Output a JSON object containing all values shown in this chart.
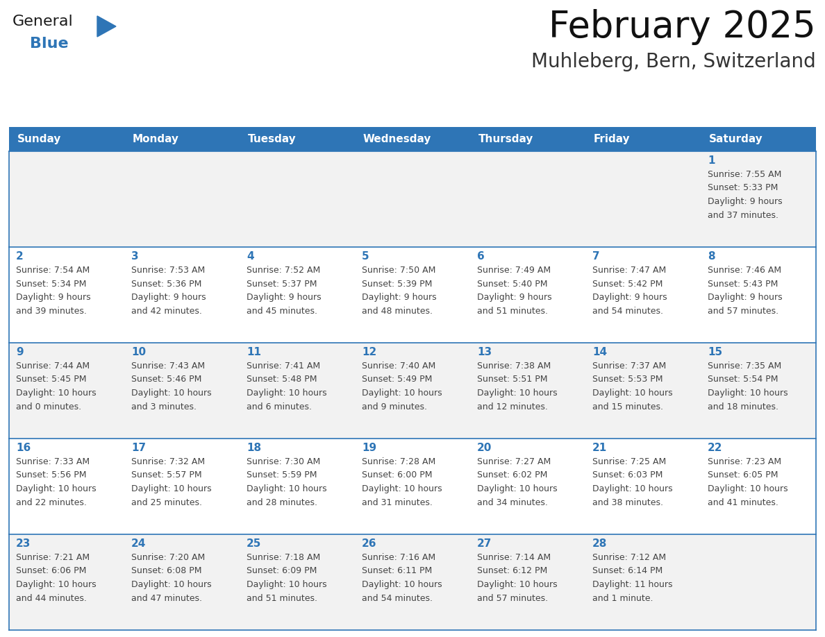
{
  "title": "February 2025",
  "subtitle": "Muhleberg, Bern, Switzerland",
  "header_bg": "#2E75B6",
  "header_text_color": "#FFFFFF",
  "cell_bg_white": "#FFFFFF",
  "cell_bg_gray": "#F2F2F2",
  "cell_border_color": "#2E75B6",
  "day_number_color": "#2E75B6",
  "cell_text_color": "#444444",
  "days_of_week": [
    "Sunday",
    "Monday",
    "Tuesday",
    "Wednesday",
    "Thursday",
    "Friday",
    "Saturday"
  ],
  "logo_general_color": "#1a1a1a",
  "logo_blue_color": "#2E75B6",
  "calendar_data": [
    [
      null,
      null,
      null,
      null,
      null,
      null,
      {
        "day": 1,
        "sunrise": "7:55 AM",
        "sunset": "5:33 PM",
        "daylight": "9 hours and 37 minutes."
      }
    ],
    [
      {
        "day": 2,
        "sunrise": "7:54 AM",
        "sunset": "5:34 PM",
        "daylight": "9 hours and 39 minutes."
      },
      {
        "day": 3,
        "sunrise": "7:53 AM",
        "sunset": "5:36 PM",
        "daylight": "9 hours and 42 minutes."
      },
      {
        "day": 4,
        "sunrise": "7:52 AM",
        "sunset": "5:37 PM",
        "daylight": "9 hours and 45 minutes."
      },
      {
        "day": 5,
        "sunrise": "7:50 AM",
        "sunset": "5:39 PM",
        "daylight": "9 hours and 48 minutes."
      },
      {
        "day": 6,
        "sunrise": "7:49 AM",
        "sunset": "5:40 PM",
        "daylight": "9 hours and 51 minutes."
      },
      {
        "day": 7,
        "sunrise": "7:47 AM",
        "sunset": "5:42 PM",
        "daylight": "9 hours and 54 minutes."
      },
      {
        "day": 8,
        "sunrise": "7:46 AM",
        "sunset": "5:43 PM",
        "daylight": "9 hours and 57 minutes."
      }
    ],
    [
      {
        "day": 9,
        "sunrise": "7:44 AM",
        "sunset": "5:45 PM",
        "daylight": "10 hours and 0 minutes."
      },
      {
        "day": 10,
        "sunrise": "7:43 AM",
        "sunset": "5:46 PM",
        "daylight": "10 hours and 3 minutes."
      },
      {
        "day": 11,
        "sunrise": "7:41 AM",
        "sunset": "5:48 PM",
        "daylight": "10 hours and 6 minutes."
      },
      {
        "day": 12,
        "sunrise": "7:40 AM",
        "sunset": "5:49 PM",
        "daylight": "10 hours and 9 minutes."
      },
      {
        "day": 13,
        "sunrise": "7:38 AM",
        "sunset": "5:51 PM",
        "daylight": "10 hours and 12 minutes."
      },
      {
        "day": 14,
        "sunrise": "7:37 AM",
        "sunset": "5:53 PM",
        "daylight": "10 hours and 15 minutes."
      },
      {
        "day": 15,
        "sunrise": "7:35 AM",
        "sunset": "5:54 PM",
        "daylight": "10 hours and 18 minutes."
      }
    ],
    [
      {
        "day": 16,
        "sunrise": "7:33 AM",
        "sunset": "5:56 PM",
        "daylight": "10 hours and 22 minutes."
      },
      {
        "day": 17,
        "sunrise": "7:32 AM",
        "sunset": "5:57 PM",
        "daylight": "10 hours and 25 minutes."
      },
      {
        "day": 18,
        "sunrise": "7:30 AM",
        "sunset": "5:59 PM",
        "daylight": "10 hours and 28 minutes."
      },
      {
        "day": 19,
        "sunrise": "7:28 AM",
        "sunset": "6:00 PM",
        "daylight": "10 hours and 31 minutes."
      },
      {
        "day": 20,
        "sunrise": "7:27 AM",
        "sunset": "6:02 PM",
        "daylight": "10 hours and 34 minutes."
      },
      {
        "day": 21,
        "sunrise": "7:25 AM",
        "sunset": "6:03 PM",
        "daylight": "10 hours and 38 minutes."
      },
      {
        "day": 22,
        "sunrise": "7:23 AM",
        "sunset": "6:05 PM",
        "daylight": "10 hours and 41 minutes."
      }
    ],
    [
      {
        "day": 23,
        "sunrise": "7:21 AM",
        "sunset": "6:06 PM",
        "daylight": "10 hours and 44 minutes."
      },
      {
        "day": 24,
        "sunrise": "7:20 AM",
        "sunset": "6:08 PM",
        "daylight": "10 hours and 47 minutes."
      },
      {
        "day": 25,
        "sunrise": "7:18 AM",
        "sunset": "6:09 PM",
        "daylight": "10 hours and 51 minutes."
      },
      {
        "day": 26,
        "sunrise": "7:16 AM",
        "sunset": "6:11 PM",
        "daylight": "10 hours and 54 minutes."
      },
      {
        "day": 27,
        "sunrise": "7:14 AM",
        "sunset": "6:12 PM",
        "daylight": "10 hours and 57 minutes."
      },
      {
        "day": 28,
        "sunrise": "7:12 AM",
        "sunset": "6:14 PM",
        "daylight": "11 hours and 1 minute."
      },
      null
    ]
  ]
}
